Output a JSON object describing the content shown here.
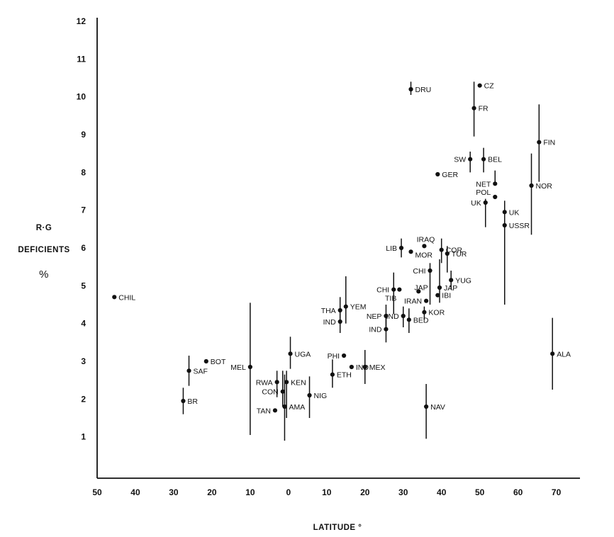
{
  "chart_data": {
    "type": "scatter",
    "ylabel_lines": [
      "R·G",
      "DEFICIENTS",
      "%"
    ],
    "xlabel": "LATITUDE °",
    "xlim": [
      -50,
      80
    ],
    "ylim": [
      0,
      12
    ],
    "x_ticks": [
      -50,
      -40,
      -30,
      -20,
      -10,
      0,
      10,
      20,
      30,
      40,
      50,
      60,
      70
    ],
    "x_tick_labels": [
      "50",
      "40",
      "30",
      "20",
      "10",
      "0",
      "10",
      "20",
      "30",
      "40",
      "50",
      "60",
      "70"
    ],
    "y_ticks": [
      1,
      2,
      3,
      4,
      5,
      6,
      7,
      8,
      9,
      10,
      11,
      12
    ],
    "y_tick_labels": [
      "1",
      "2",
      "3",
      "4",
      "5",
      "6",
      "7",
      "8",
      "9",
      "10",
      "11",
      "12"
    ],
    "points": [
      {
        "label": "CHIL",
        "x": -45.5,
        "y": 4.7,
        "side": "right"
      },
      {
        "label": "BR",
        "x": -27.5,
        "y": 1.95,
        "range": [
          1.6,
          2.3
        ],
        "side": "right"
      },
      {
        "label": "SAF",
        "x": -26,
        "y": 2.75,
        "range": [
          2.35,
          3.15
        ],
        "side": "right"
      },
      {
        "label": "BOT",
        "x": -21.5,
        "y": 3.0,
        "side": "right"
      },
      {
        "label": "MEL",
        "x": -10,
        "y": 2.85,
        "range": [
          1.05,
          4.55
        ],
        "side": "left"
      },
      {
        "label": "RWA",
        "x": -3,
        "y": 2.45,
        "range": [
          2.05,
          2.75
        ],
        "side": "left"
      },
      {
        "label": "CON",
        "x": -1.5,
        "y": 2.2,
        "range": [
          1.8,
          2.75
        ],
        "side": "left"
      },
      {
        "label": "TAN",
        "x": -3.5,
        "y": 1.7,
        "side": "left"
      },
      {
        "label": "KEN",
        "x": -0.5,
        "y": 2.45,
        "range": [
          1.5,
          2.75
        ],
        "side": "right"
      },
      {
        "label": "AMA",
        "x": -1,
        "y": 1.8,
        "range": [
          0.9,
          2.65
        ],
        "side": "right"
      },
      {
        "label": "UGA",
        "x": 0.5,
        "y": 3.2,
        "range": [
          2.8,
          3.65
        ],
        "side": "right"
      },
      {
        "label": "NIG",
        "x": 5.5,
        "y": 2.1,
        "range": [
          1.5,
          2.6
        ],
        "side": "right"
      },
      {
        "label": "PHI",
        "x": 14.5,
        "y": 3.15,
        "side": "left"
      },
      {
        "label": "IND",
        "x": 16.5,
        "y": 2.85,
        "side": "right"
      },
      {
        "label": "ETH",
        "x": 11.5,
        "y": 2.65,
        "range": [
          2.3,
          3.05
        ],
        "side": "right"
      },
      {
        "label": "MEX",
        "x": 20,
        "y": 2.85,
        "range": [
          2.4,
          3.3
        ],
        "side": "right"
      },
      {
        "label": "THA",
        "x": 13.5,
        "y": 4.35,
        "range": [
          4.0,
          4.7
        ],
        "side": "left"
      },
      {
        "label": "IND",
        "x": 13.5,
        "y": 4.05,
        "range": [
          3.75,
          4.35
        ],
        "side": "left"
      },
      {
        "label": "YEM",
        "x": 15,
        "y": 4.45,
        "range": [
          4.0,
          5.25
        ],
        "side": "right"
      },
      {
        "label": "NEP",
        "x": 25.5,
        "y": 4.2,
        "range": [
          3.9,
          4.5
        ],
        "side": "left"
      },
      {
        "label": "IND",
        "x": 25.5,
        "y": 3.85,
        "range": [
          3.5,
          4.15
        ],
        "side": "left"
      },
      {
        "label": "IND",
        "x": 30,
        "y": 4.2,
        "range": [
          3.9,
          4.45
        ],
        "side": "left"
      },
      {
        "label": "BED",
        "x": 31.5,
        "y": 4.1,
        "range": [
          3.75,
          4.4
        ],
        "side": "right"
      },
      {
        "label": "KOR",
        "x": 35.5,
        "y": 4.3,
        "range": [
          4.1,
          4.45
        ],
        "side": "right"
      },
      {
        "label": "CHI",
        "x": 27.5,
        "y": 4.9,
        "range": [
          4.25,
          5.35
        ],
        "side": "left"
      },
      {
        "label": "TIB",
        "x": 29,
        "y": 4.9,
        "side": "left-below"
      },
      {
        "label": "JAP",
        "x": 34,
        "y": 4.85,
        "side": "right-above"
      },
      {
        "label": "IRAN",
        "x": 36,
        "y": 4.6,
        "side": "left"
      },
      {
        "label": "CHI",
        "x": 37,
        "y": 5.4,
        "range": [
          4.5,
          5.6
        ],
        "side": "left"
      },
      {
        "label": "JAP",
        "x": 39.5,
        "y": 4.95,
        "range": [
          4.55,
          5.7
        ],
        "side": "right"
      },
      {
        "label": "IBI",
        "x": 39,
        "y": 4.75,
        "side": "right"
      },
      {
        "label": "YUG",
        "x": 42.5,
        "y": 5.15,
        "range": [
          4.9,
          5.4
        ],
        "side": "right"
      },
      {
        "label": "LIB",
        "x": 29.5,
        "y": 6.0,
        "range": [
          5.75,
          6.25
        ],
        "side": "left"
      },
      {
        "label": "MOR",
        "x": 32,
        "y": 5.9,
        "side": "right-below"
      },
      {
        "label": "IRAQ",
        "x": 35.5,
        "y": 6.05,
        "side": "above"
      },
      {
        "label": "COR",
        "x": 40,
        "y": 5.95,
        "range": [
          5.6,
          6.25
        ],
        "side": "right"
      },
      {
        "label": "TUR",
        "x": 41.5,
        "y": 5.85,
        "range": [
          5.35,
          6.05
        ],
        "side": "right"
      },
      {
        "label": "DRU",
        "x": 32,
        "y": 10.2,
        "range": [
          10.05,
          10.4
        ],
        "side": "right"
      },
      {
        "label": "CZ",
        "x": 50,
        "y": 10.3,
        "side": "right"
      },
      {
        "label": "FR",
        "x": 48.5,
        "y": 9.7,
        "range": [
          8.95,
          10.4
        ],
        "side": "right"
      },
      {
        "label": "SW",
        "x": 47.5,
        "y": 8.35,
        "range": [
          8.0,
          8.55
        ],
        "side": "left"
      },
      {
        "label": "BEL",
        "x": 51,
        "y": 8.35,
        "range": [
          8.0,
          8.65
        ],
        "side": "right"
      },
      {
        "label": "GER",
        "x": 39,
        "y": 7.95,
        "side": "right"
      },
      {
        "label": "NET",
        "x": 54,
        "y": 7.7,
        "range": [
          7.65,
          8.05
        ],
        "side": "left"
      },
      {
        "label": "POL",
        "x": 54,
        "y": 7.35,
        "side": "left-above"
      },
      {
        "label": "UK",
        "x": 51.5,
        "y": 7.2,
        "range": [
          6.55,
          7.3
        ],
        "side": "left"
      },
      {
        "label": "UK",
        "x": 56.5,
        "y": 6.95,
        "range": [
          6.75,
          7.25
        ],
        "side": "right"
      },
      {
        "label": "USSR",
        "x": 56.5,
        "y": 6.6,
        "range": [
          4.5,
          6.95
        ],
        "side": "right"
      },
      {
        "label": "FIN",
        "x": 65.5,
        "y": 8.8,
        "range": [
          7.75,
          9.8
        ],
        "side": "right"
      },
      {
        "label": "NOR",
        "x": 63.5,
        "y": 7.65,
        "range": [
          6.35,
          8.5
        ],
        "side": "right"
      },
      {
        "label": "NAV",
        "x": 36,
        "y": 1.8,
        "range": [
          0.95,
          2.4
        ],
        "side": "right"
      },
      {
        "label": "ALA",
        "x": 69,
        "y": 3.2,
        "range": [
          2.25,
          4.15
        ],
        "side": "right"
      }
    ]
  }
}
